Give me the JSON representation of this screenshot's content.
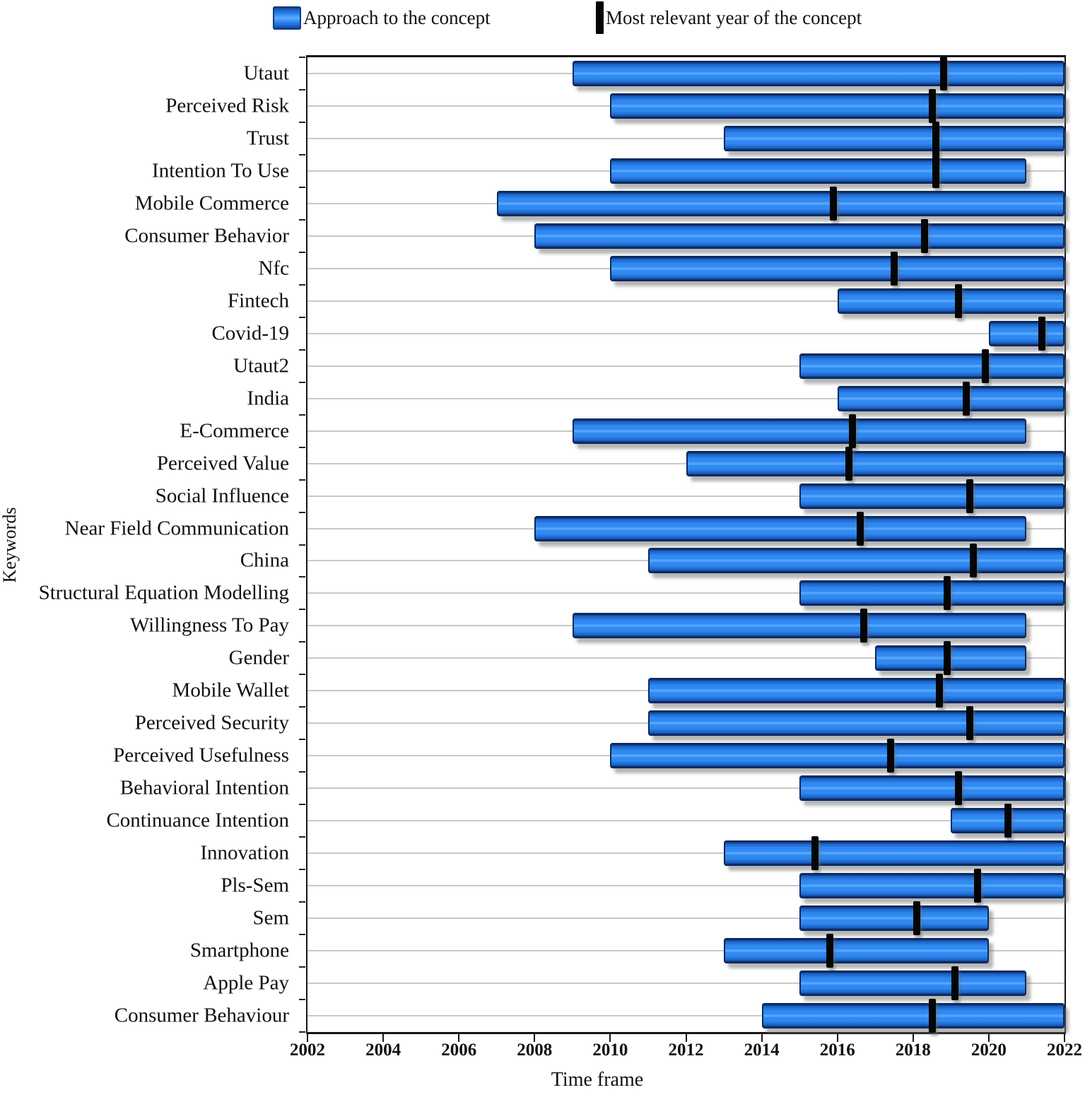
{
  "legend": {
    "items": [
      {
        "label": "Approach to the concept",
        "symbol": "blue-square-swatch"
      },
      {
        "label": "Most relevant year of the concept",
        "symbol": "black-vertical-bar"
      }
    ]
  },
  "axes": {
    "x_label": "Time frame",
    "y_label": "Keywords"
  },
  "colors": {
    "bar_fill": "#2F89F1",
    "bar_highlight": "#5FACFF",
    "bar_edge": "#0A2A5E",
    "marker": "#050505",
    "grid_line": "#C9C9C9",
    "axis": "#151515",
    "background": "#FFFFFF"
  },
  "chart_data": {
    "type": "bar",
    "subtype": "horizontal_interval_timeline",
    "title": "",
    "xlabel": "Time frame",
    "ylabel": "Keywords",
    "xlim": [
      2002,
      2022
    ],
    "x_ticks": [
      2002,
      2004,
      2006,
      2008,
      2010,
      2012,
      2014,
      2016,
      2018,
      2020,
      2022
    ],
    "grid": "horizontal-light-gray",
    "legend_position": "top",
    "legend": [
      {
        "label": "Approach to the concept"
      },
      {
        "label": "Most relevant year of the concept"
      }
    ],
    "rows": [
      {
        "keyword": "Utaut",
        "start": 2009,
        "peak": 2018.8,
        "end": 2022
      },
      {
        "keyword": "Perceived Risk",
        "start": 2010,
        "peak": 2018.5,
        "end": 2022
      },
      {
        "keyword": "Trust",
        "start": 2013,
        "peak": 2018.6,
        "end": 2022
      },
      {
        "keyword": "Intention To Use",
        "start": 2010,
        "peak": 2018.6,
        "end": 2021
      },
      {
        "keyword": "Mobile Commerce",
        "start": 2007,
        "peak": 2015.9,
        "end": 2022
      },
      {
        "keyword": "Consumer Behavior",
        "start": 2008,
        "peak": 2018.3,
        "end": 2022
      },
      {
        "keyword": "Nfc",
        "start": 2010,
        "peak": 2017.5,
        "end": 2022
      },
      {
        "keyword": "Fintech",
        "start": 2016,
        "peak": 2019.2,
        "end": 2022
      },
      {
        "keyword": "Covid-19",
        "start": 2020,
        "peak": 2021.4,
        "end": 2022
      },
      {
        "keyword": "Utaut2",
        "start": 2015,
        "peak": 2019.9,
        "end": 2022
      },
      {
        "keyword": "India",
        "start": 2016,
        "peak": 2019.4,
        "end": 2022
      },
      {
        "keyword": "E-Commerce",
        "start": 2009,
        "peak": 2016.4,
        "end": 2021
      },
      {
        "keyword": "Perceived Value",
        "start": 2012,
        "peak": 2016.3,
        "end": 2022
      },
      {
        "keyword": "Social Influence",
        "start": 2015,
        "peak": 2019.5,
        "end": 2022
      },
      {
        "keyword": "Near Field Communication",
        "start": 2008,
        "peak": 2016.6,
        "end": 2021
      },
      {
        "keyword": "China",
        "start": 2011,
        "peak": 2019.6,
        "end": 2022
      },
      {
        "keyword": "Structural Equation Modelling",
        "start": 2015,
        "peak": 2018.9,
        "end": 2022
      },
      {
        "keyword": "Willingness To Pay",
        "start": 2009,
        "peak": 2016.7,
        "end": 2021
      },
      {
        "keyword": "Gender",
        "start": 2017,
        "peak": 2018.9,
        "end": 2021
      },
      {
        "keyword": "Mobile Wallet",
        "start": 2011,
        "peak": 2018.7,
        "end": 2022
      },
      {
        "keyword": "Perceived Security",
        "start": 2011,
        "peak": 2019.5,
        "end": 2022
      },
      {
        "keyword": "Perceived Usefulness",
        "start": 2010,
        "peak": 2017.4,
        "end": 2022
      },
      {
        "keyword": "Behavioral Intention",
        "start": 2015,
        "peak": 2019.2,
        "end": 2022
      },
      {
        "keyword": "Continuance Intention",
        "start": 2019,
        "peak": 2020.5,
        "end": 2022
      },
      {
        "keyword": "Innovation",
        "start": 2013,
        "peak": 2015.4,
        "end": 2022
      },
      {
        "keyword": "Pls-Sem",
        "start": 2015,
        "peak": 2019.7,
        "end": 2022
      },
      {
        "keyword": "Sem",
        "start": 2015,
        "peak": 2018.1,
        "end": 2020
      },
      {
        "keyword": "Smartphone",
        "start": 2013,
        "peak": 2015.8,
        "end": 2020
      },
      {
        "keyword": "Apple Pay",
        "start": 2015,
        "peak": 2019.1,
        "end": 2021
      },
      {
        "keyword": "Consumer Behaviour",
        "start": 2014,
        "peak": 2018.5,
        "end": 2022
      }
    ]
  }
}
